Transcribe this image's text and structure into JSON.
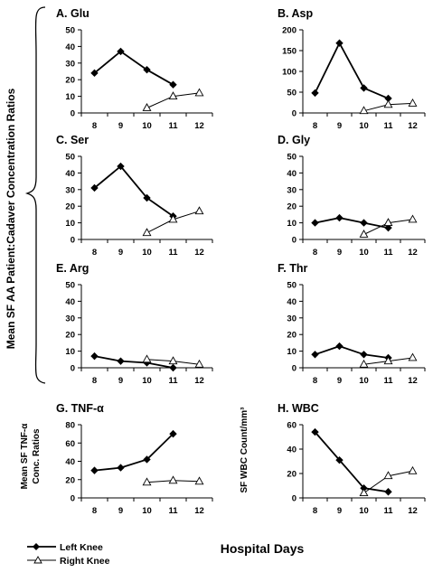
{
  "figure": {
    "ylabel_main": "Mean SF AA Patient:Cadaver Concentration Ratios",
    "ylabel_tnf": [
      "Mean SF TNF-α",
      "Conc. Ratios"
    ],
    "ylabel_wbc": "SF WBC Count/mm³",
    "xlabel": "Hospital Days",
    "legend": [
      {
        "label": "Left Knee",
        "marker": "filled-diamond"
      },
      {
        "label": "Right Knee",
        "marker": "open-triangle"
      }
    ]
  },
  "chart_data": [
    {
      "id": "A",
      "title": "A. Glu",
      "type": "line",
      "categories": [
        "8",
        "9",
        "10",
        "11",
        "12"
      ],
      "ylim": [
        0,
        50
      ],
      "yticks": [
        0,
        10,
        20,
        30,
        40,
        50
      ],
      "series": [
        {
          "name": "Left Knee",
          "x": [
            "8",
            "9",
            "10",
            "11"
          ],
          "values": [
            24,
            37,
            26,
            17
          ]
        },
        {
          "name": "Right Knee",
          "x": [
            "10",
            "11",
            "12"
          ],
          "values": [
            3,
            10,
            12
          ]
        }
      ]
    },
    {
      "id": "B",
      "title": "B. Asp",
      "type": "line",
      "categories": [
        "8",
        "9",
        "10",
        "11",
        "12"
      ],
      "ylim": [
        0,
        200
      ],
      "yticks": [
        0,
        50,
        100,
        150,
        200
      ],
      "series": [
        {
          "name": "Left Knee",
          "x": [
            "8",
            "9",
            "10",
            "11"
          ],
          "values": [
            48,
            168,
            60,
            35
          ]
        },
        {
          "name": "Right Knee",
          "x": [
            "10",
            "11",
            "12"
          ],
          "values": [
            5,
            20,
            23
          ]
        }
      ]
    },
    {
      "id": "C",
      "title": "C. Ser",
      "type": "line",
      "categories": [
        "8",
        "9",
        "10",
        "11",
        "12"
      ],
      "ylim": [
        0,
        50
      ],
      "yticks": [
        0,
        10,
        20,
        30,
        40,
        50
      ],
      "series": [
        {
          "name": "Left Knee",
          "x": [
            "8",
            "9",
            "10",
            "11"
          ],
          "values": [
            31,
            44,
            25,
            14
          ]
        },
        {
          "name": "Right Knee",
          "x": [
            "10",
            "11",
            "12"
          ],
          "values": [
            4,
            12,
            17
          ]
        }
      ]
    },
    {
      "id": "D",
      "title": "D. Gly",
      "type": "line",
      "categories": [
        "8",
        "9",
        "10",
        "11",
        "12"
      ],
      "ylim": [
        0,
        50
      ],
      "yticks": [
        0,
        10,
        20,
        30,
        40,
        50
      ],
      "series": [
        {
          "name": "Left Knee",
          "x": [
            "8",
            "9",
            "10",
            "11"
          ],
          "values": [
            10,
            13,
            10,
            7
          ]
        },
        {
          "name": "Right Knee",
          "x": [
            "10",
            "11",
            "12"
          ],
          "values": [
            3,
            10,
            12
          ]
        }
      ]
    },
    {
      "id": "E",
      "title": "E. Arg",
      "type": "line",
      "categories": [
        "8",
        "9",
        "10",
        "11",
        "12"
      ],
      "ylim": [
        0,
        50
      ],
      "yticks": [
        0,
        10,
        20,
        30,
        40,
        50
      ],
      "series": [
        {
          "name": "Left Knee",
          "x": [
            "8",
            "9",
            "10",
            "11"
          ],
          "values": [
            7,
            4,
            3,
            0
          ]
        },
        {
          "name": "Right Knee",
          "x": [
            "10",
            "11",
            "12"
          ],
          "values": [
            5,
            4,
            2
          ]
        }
      ]
    },
    {
      "id": "F",
      "title": "F. Thr",
      "type": "line",
      "categories": [
        "8",
        "9",
        "10",
        "11",
        "12"
      ],
      "ylim": [
        0,
        50
      ],
      "yticks": [
        0,
        10,
        20,
        30,
        40,
        50
      ],
      "series": [
        {
          "name": "Left Knee",
          "x": [
            "8",
            "9",
            "10",
            "11"
          ],
          "values": [
            8,
            13,
            8,
            6
          ]
        },
        {
          "name": "Right Knee",
          "x": [
            "10",
            "11",
            "12"
          ],
          "values": [
            2,
            4,
            6
          ]
        }
      ]
    },
    {
      "id": "G",
      "title": "G. TNF-α",
      "type": "line",
      "categories": [
        "8",
        "9",
        "10",
        "11",
        "12"
      ],
      "ylim": [
        0,
        80
      ],
      "yticks": [
        0,
        20,
        40,
        60,
        80
      ],
      "series": [
        {
          "name": "Left Knee",
          "x": [
            "8",
            "9",
            "10",
            "11"
          ],
          "values": [
            30,
            33,
            42,
            70
          ]
        },
        {
          "name": "Right Knee",
          "x": [
            "10",
            "11",
            "12"
          ],
          "values": [
            17,
            19,
            18
          ]
        }
      ]
    },
    {
      "id": "H",
      "title": "H. WBC",
      "type": "line",
      "categories": [
        "8",
        "9",
        "10",
        "11",
        "12"
      ],
      "ylim": [
        0,
        60
      ],
      "yticks": [
        0,
        20,
        40,
        60
      ],
      "series": [
        {
          "name": "Left Knee",
          "x": [
            "8",
            "9",
            "10",
            "11"
          ],
          "values": [
            54,
            31,
            8,
            5
          ]
        },
        {
          "name": "Right Knee",
          "x": [
            "10",
            "11",
            "12"
          ],
          "values": [
            4,
            18,
            22
          ]
        }
      ]
    }
  ]
}
